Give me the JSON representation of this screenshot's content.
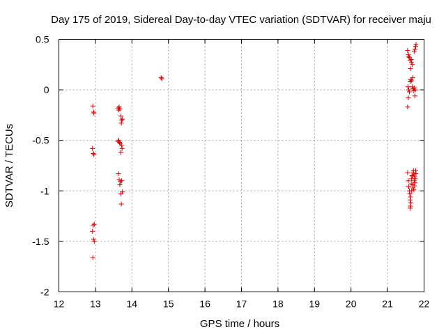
{
  "chart_data": {
    "type": "scatter",
    "title": "Day 175 of 2019, Sidereal Day-to-day VTEC variation (SDTVAR) for receiver maju",
    "xlabel": "GPS time / hours",
    "ylabel": "SDTVAR / TECUs",
    "xlim": [
      12,
      22
    ],
    "ylim": [
      -2,
      0.5
    ],
    "xticks": [
      12,
      13,
      14,
      15,
      16,
      17,
      18,
      19,
      20,
      21,
      22
    ],
    "yticks": [
      -2,
      -1.5,
      -1,
      -0.5,
      0,
      0.5
    ],
    "xtick_labels": [
      "12",
      "13",
      "14",
      "15",
      "16",
      "17",
      "18",
      "19",
      "20",
      "21",
      "22"
    ],
    "ytick_labels": [
      "-2",
      "-1.5",
      "-1",
      "-0.5",
      "0",
      "0.5"
    ],
    "grid": true,
    "marker": "+",
    "color": "#dd0000",
    "series": [
      {
        "name": "SDTVAR",
        "points": [
          [
            12.93,
            -0.16
          ],
          [
            12.95,
            -0.22
          ],
          [
            12.96,
            -0.23
          ],
          [
            12.92,
            -0.58
          ],
          [
            12.94,
            -0.63
          ],
          [
            12.96,
            -0.64
          ],
          [
            12.94,
            -1.34
          ],
          [
            12.97,
            -1.33
          ],
          [
            12.92,
            -1.4
          ],
          [
            12.95,
            -1.48
          ],
          [
            12.97,
            -1.5
          ],
          [
            12.93,
            -1.66
          ],
          [
            13.62,
            -0.18
          ],
          [
            13.65,
            -0.17
          ],
          [
            13.67,
            -0.19
          ],
          [
            13.64,
            -0.2
          ],
          [
            13.7,
            -0.26
          ],
          [
            13.72,
            -0.3
          ],
          [
            13.74,
            -0.29
          ],
          [
            13.71,
            -0.33
          ],
          [
            13.62,
            -0.51
          ],
          [
            13.64,
            -0.5
          ],
          [
            13.66,
            -0.52
          ],
          [
            13.68,
            -0.53
          ],
          [
            13.72,
            -0.55
          ],
          [
            13.73,
            -0.58
          ],
          [
            13.7,
            -0.62
          ],
          [
            13.63,
            -0.83
          ],
          [
            13.65,
            -0.89
          ],
          [
            13.68,
            -0.91
          ],
          [
            13.72,
            -0.9
          ],
          [
            13.67,
            -0.94
          ],
          [
            13.74,
            -1.01
          ],
          [
            13.7,
            -1.03
          ],
          [
            13.71,
            -1.13
          ],
          [
            14.8,
            0.12
          ],
          [
            14.82,
            0.11
          ],
          [
            21.55,
            0.39
          ],
          [
            21.57,
            0.35
          ],
          [
            21.58,
            0.33
          ],
          [
            21.6,
            0.32
          ],
          [
            21.62,
            0.29
          ],
          [
            21.65,
            0.3
          ],
          [
            21.66,
            0.27
          ],
          [
            21.68,
            0.25
          ],
          [
            21.63,
            0.21
          ],
          [
            21.75,
            0.4
          ],
          [
            21.77,
            0.43
          ],
          [
            21.78,
            0.45
          ],
          [
            21.73,
            0.38
          ],
          [
            21.56,
            0.03
          ],
          [
            21.58,
            0.0
          ],
          [
            21.6,
            -0.02
          ],
          [
            21.62,
            0.08
          ],
          [
            21.64,
            0.1
          ],
          [
            21.66,
            0.09
          ],
          [
            21.68,
            0.03
          ],
          [
            21.7,
            0.01
          ],
          [
            21.72,
            -0.01
          ],
          [
            21.74,
            0.02
          ],
          [
            21.76,
            0.0
          ],
          [
            21.75,
            -0.06
          ],
          [
            21.57,
            -0.08
          ],
          [
            21.55,
            -0.17
          ],
          [
            21.69,
            0.12
          ],
          [
            21.55,
            -0.82
          ],
          [
            21.57,
            -0.9
          ],
          [
            21.58,
            -0.96
          ],
          [
            21.6,
            -1.0
          ],
          [
            21.61,
            -1.03
          ],
          [
            21.63,
            -1.06
          ],
          [
            21.62,
            -1.09
          ],
          [
            21.64,
            -1.12
          ],
          [
            21.63,
            -1.15
          ],
          [
            21.62,
            -1.17
          ],
          [
            21.65,
            -0.93
          ],
          [
            21.66,
            -0.88
          ],
          [
            21.67,
            -0.85
          ],
          [
            21.68,
            -0.86
          ],
          [
            21.7,
            -0.82
          ],
          [
            21.71,
            -0.8
          ],
          [
            21.72,
            -0.84
          ],
          [
            21.73,
            -0.9
          ],
          [
            21.74,
            -0.95
          ],
          [
            21.75,
            -0.92
          ],
          [
            21.76,
            -0.88
          ],
          [
            21.77,
            -0.8
          ],
          [
            21.78,
            -0.83
          ],
          [
            21.7,
            -0.97
          ],
          [
            21.72,
            -0.99
          ],
          [
            21.66,
            -1.0
          ],
          [
            21.69,
            -0.94
          ],
          [
            21.74,
            -0.86
          ]
        ]
      }
    ]
  }
}
